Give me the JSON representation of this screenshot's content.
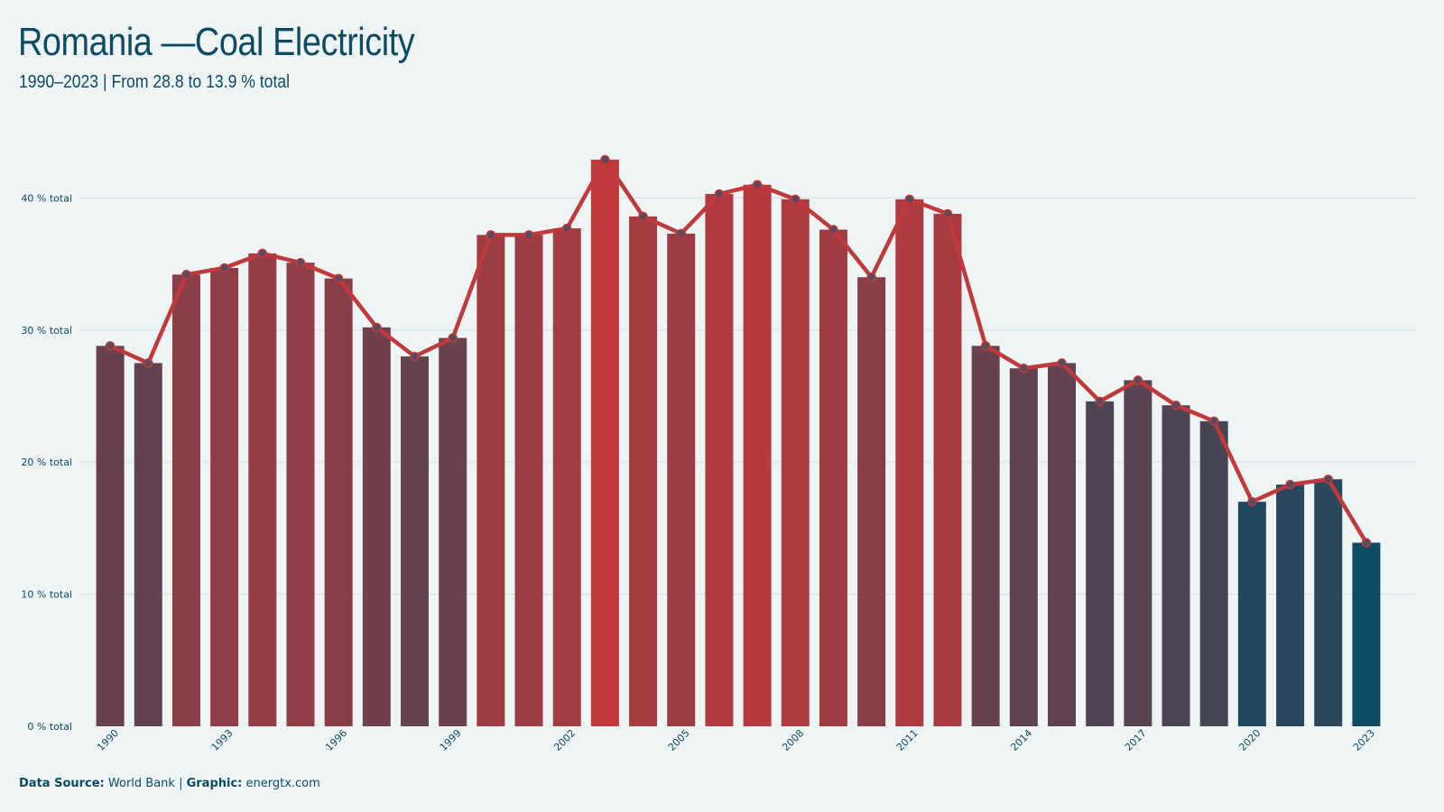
{
  "header": {
    "title": "Romania —Coal Electricity",
    "subtitle": "1990–2023 | From 28.8 to 13.9 % total"
  },
  "footer": {
    "source_label": "Data Source:",
    "source_value": " World Bank | ",
    "graphic_label": "Graphic:",
    "graphic_value": " energtx.com"
  },
  "colors": {
    "background": "#eff5f5",
    "text": "#0d4a63",
    "line": "#c0393b",
    "low": "#0d4a63",
    "high": "#c0393b",
    "grid": "#d9e3e6"
  },
  "chart_data": {
    "type": "bar",
    "overlay": "line",
    "categories": [
      "1990",
      "1991",
      "1992",
      "1993",
      "1994",
      "1995",
      "1996",
      "1997",
      "1998",
      "1999",
      "2000",
      "2001",
      "2002",
      "2003",
      "2004",
      "2005",
      "2006",
      "2007",
      "2008",
      "2009",
      "2010",
      "2011",
      "2012",
      "2013",
      "2014",
      "2015",
      "2016",
      "2017",
      "2018",
      "2019",
      "2020",
      "2021",
      "2022",
      "2023"
    ],
    "values": [
      28.8,
      27.5,
      34.2,
      34.7,
      35.8,
      35.1,
      33.9,
      30.2,
      28.0,
      29.4,
      37.2,
      37.2,
      37.7,
      42.9,
      38.6,
      37.3,
      40.3,
      41.0,
      39.9,
      37.6,
      34.0,
      39.9,
      38.8,
      28.8,
      27.1,
      27.5,
      24.6,
      26.2,
      24.3,
      23.1,
      17.0,
      18.3,
      18.7,
      13.9
    ],
    "x_tick_labels": [
      "1990",
      "1993",
      "1996",
      "1999",
      "2002",
      "2005",
      "2008",
      "2011",
      "2014",
      "2017",
      "2020",
      "2023"
    ],
    "y_ticks": [
      0,
      10,
      20,
      30,
      40
    ],
    "y_tick_labels": [
      "0 % total",
      "10 % total",
      "20 % total",
      "30 % total",
      "40 % total"
    ],
    "ylim": [
      0,
      45
    ],
    "grid": true,
    "title": "Romania —Coal Electricity",
    "subtitle": "1990–2023 | From 28.8 to 13.9 % total"
  }
}
